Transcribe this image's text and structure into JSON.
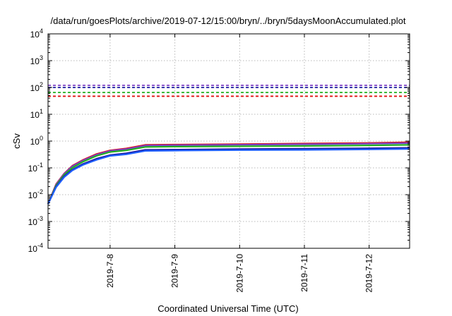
{
  "chart_data": {
    "type": "line",
    "title": "/data/run/goesPlots/archive/2019-07-12/15:00/bryn/../bryn/5daysMoonAccumulated.plot",
    "xlabel": "Coordinated Universal Time (UTC)",
    "ylabel": "cSv",
    "y_scale": "log",
    "ylim": [
      0.0001,
      10000
    ],
    "xlim": [
      "2019-07-07 01:00",
      "2019-07-12 15:00"
    ],
    "x_ticks": [
      "2019-7-8",
      "2019-7-9",
      "2019-7-10",
      "2019-7-11",
      "2019-7-12"
    ],
    "y_ticks": [
      {
        "base": "10",
        "exp": "-4"
      },
      {
        "base": "10",
        "exp": "-3"
      },
      {
        "base": "10",
        "exp": "-2"
      },
      {
        "base": "10",
        "exp": "-1"
      },
      {
        "base": "10",
        "exp": "0"
      },
      {
        "base": "10",
        "exp": "1"
      },
      {
        "base": "10",
        "exp": "2"
      },
      {
        "base": "10",
        "exp": "3"
      },
      {
        "base": "10",
        "exp": "4"
      }
    ],
    "grid": true,
    "thresholds": [
      {
        "value": 120,
        "color": "#7a3fc4",
        "style": "dashed"
      },
      {
        "value": 100,
        "color": "#1a1aa0",
        "style": "dashed"
      },
      {
        "value": 65,
        "color": "#22b022",
        "style": "dashed"
      },
      {
        "value": 47,
        "color": "#e01010",
        "style": "dashed"
      }
    ],
    "series": [
      {
        "color": "#e01010",
        "x": [
          "2019-07-07 01:00",
          "2019-07-07 04:00",
          "2019-07-07 07:00",
          "2019-07-07 10:00",
          "2019-07-07 14:00",
          "2019-07-07 19:00",
          "2019-07-08 00:00",
          "2019-07-08 06:00",
          "2019-07-08 13:00",
          "2019-07-09 00:00",
          "2019-07-10 00:00",
          "2019-07-11 00:00",
          "2019-07-12 00:00",
          "2019-07-12 15:00"
        ],
        "y": [
          0.0045,
          0.025,
          0.062,
          0.12,
          0.2,
          0.33,
          0.45,
          0.53,
          0.72,
          0.74,
          0.77,
          0.81,
          0.85,
          0.9
        ]
      },
      {
        "color": "#7a3fc4",
        "x": [
          "2019-07-07 01:00",
          "2019-07-07 04:00",
          "2019-07-07 07:00",
          "2019-07-07 10:00",
          "2019-07-07 14:00",
          "2019-07-07 19:00",
          "2019-07-08 00:00",
          "2019-07-08 06:00",
          "2019-07-08 13:00",
          "2019-07-09 00:00",
          "2019-07-10 00:00",
          "2019-07-11 00:00",
          "2019-07-12 00:00",
          "2019-07-12 15:00"
        ],
        "y": [
          0.0045,
          0.024,
          0.06,
          0.115,
          0.19,
          0.31,
          0.43,
          0.5,
          0.68,
          0.7,
          0.73,
          0.76,
          0.8,
          0.84
        ]
      },
      {
        "color": "#22b022",
        "x": [
          "2019-07-07 01:00",
          "2019-07-07 04:00",
          "2019-07-07 07:00",
          "2019-07-07 10:00",
          "2019-07-07 14:00",
          "2019-07-07 19:00",
          "2019-07-08 00:00",
          "2019-07-08 06:00",
          "2019-07-08 13:00",
          "2019-07-09 00:00",
          "2019-07-10 00:00",
          "2019-07-11 00:00",
          "2019-07-12 00:00",
          "2019-07-12 15:00"
        ],
        "y": [
          0.0045,
          0.022,
          0.055,
          0.1,
          0.17,
          0.28,
          0.39,
          0.45,
          0.6,
          0.62,
          0.64,
          0.66,
          0.69,
          0.72
        ]
      },
      {
        "color": "#1a1aa0",
        "x": [
          "2019-07-07 01:00",
          "2019-07-07 04:00",
          "2019-07-07 07:00",
          "2019-07-07 10:00",
          "2019-07-07 14:00",
          "2019-07-07 19:00",
          "2019-07-08 00:00",
          "2019-07-08 06:00",
          "2019-07-08 13:00",
          "2019-07-09 00:00",
          "2019-07-10 00:00",
          "2019-07-11 00:00",
          "2019-07-12 00:00",
          "2019-07-12 15:00"
        ],
        "y": [
          0.0045,
          0.02,
          0.048,
          0.085,
          0.14,
          0.22,
          0.3,
          0.35,
          0.47,
          0.48,
          0.5,
          0.52,
          0.54,
          0.56
        ]
      },
      {
        "color": "#1f5fff",
        "x": [
          "2019-07-07 01:00",
          "2019-07-07 04:00",
          "2019-07-07 07:00",
          "2019-07-07 10:00",
          "2019-07-07 14:00",
          "2019-07-07 19:00",
          "2019-07-08 00:00",
          "2019-07-08 06:00",
          "2019-07-08 13:00",
          "2019-07-09 00:00",
          "2019-07-10 00:00",
          "2019-07-11 00:00",
          "2019-07-12 00:00",
          "2019-07-12 15:00"
        ],
        "y": [
          0.0045,
          0.019,
          0.045,
          0.08,
          0.13,
          0.2,
          0.28,
          0.32,
          0.43,
          0.44,
          0.46,
          0.47,
          0.49,
          0.51
        ]
      }
    ]
  }
}
